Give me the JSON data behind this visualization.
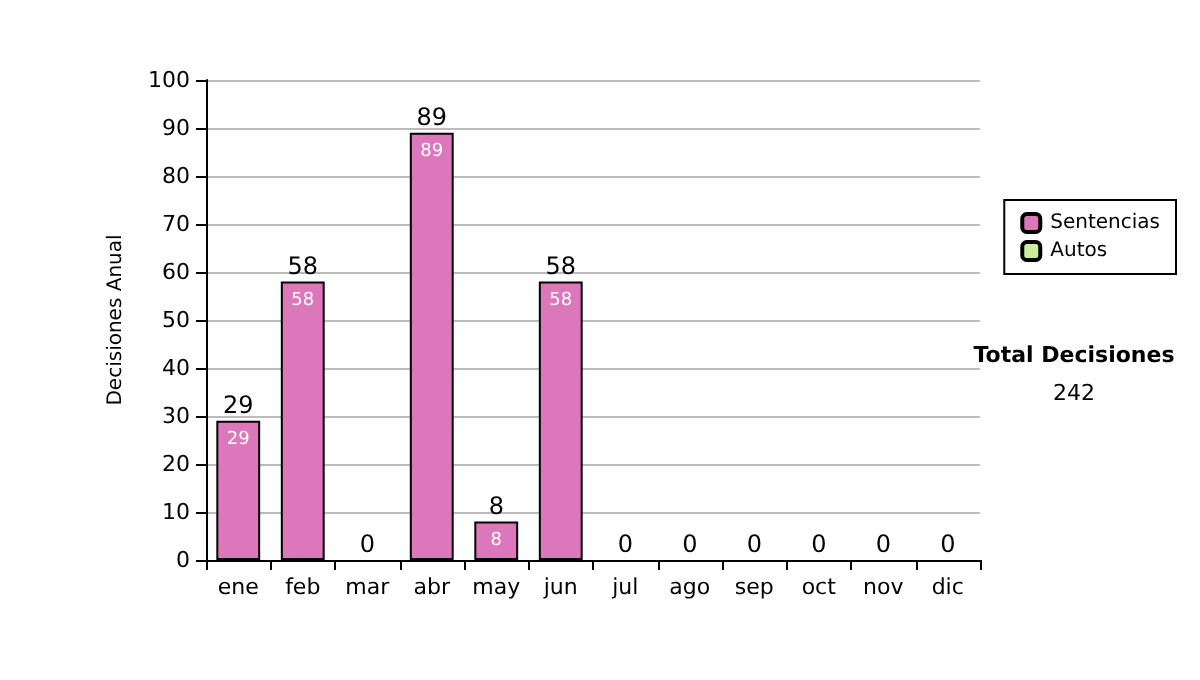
{
  "chart_data": {
    "type": "bar",
    "ylabel": "Decisiones Anual",
    "categories": [
      "ene",
      "feb",
      "mar",
      "abr",
      "may",
      "jun",
      "jul",
      "ago",
      "sep",
      "oct",
      "nov",
      "dic"
    ],
    "stacked": true,
    "series": [
      {
        "name": "Sentencias",
        "color": "#dd77bb",
        "values": [
          29,
          58,
          0,
          89,
          8,
          58,
          0,
          0,
          0,
          0,
          0,
          0
        ],
        "value_labels": [
          "29",
          "58",
          null,
          "89",
          "8",
          "58",
          null,
          null,
          null,
          null,
          null,
          null
        ]
      },
      {
        "name": "Autos",
        "color": "#ccee99",
        "values": [
          0,
          0,
          0,
          0,
          0,
          0,
          0,
          0,
          0,
          0,
          0,
          0
        ]
      }
    ],
    "totals": [
      "29",
      "58",
      "0",
      "89",
      "8",
      "58",
      "0",
      "0",
      "0",
      "0",
      "0",
      "0"
    ],
    "ylim": [
      0,
      100
    ],
    "yticks": [
      0,
      10,
      20,
      30,
      40,
      50,
      60,
      70,
      80,
      90,
      100
    ],
    "grid": "y",
    "legend": "right",
    "annotations": [
      "Total Decisiones",
      "242"
    ]
  }
}
